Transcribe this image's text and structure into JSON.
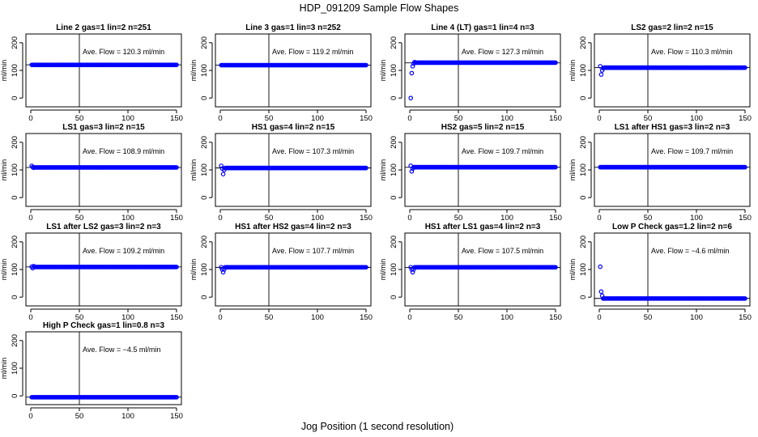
{
  "figure": {
    "title": "HDP_091209  Sample Flow Shapes",
    "xlabel": "Jog Position (1 second resolution)",
    "ylabel": "ml/min",
    "ave_prefix": "Ave. Flow = ",
    "ave_unit": " ml/min"
  },
  "chart_data": [
    {
      "type": "scatter",
      "title": "Line 2 gas=1 lin=2 n=251",
      "ave_flow": "120.3",
      "steady": 120,
      "start": [
        120,
        120,
        120
      ],
      "n": 150,
      "xlim": [
        0,
        150
      ],
      "ylim": [
        -20,
        220
      ],
      "xticks": [
        0,
        50,
        100,
        150
      ],
      "yticks": [
        0,
        100,
        200
      ],
      "vline": 50,
      "color": "#0000ff"
    },
    {
      "type": "scatter",
      "title": "Line 3 gas=1 lin=3 n=252",
      "ave_flow": "119.2",
      "steady": 119,
      "start": [
        119,
        119,
        119
      ],
      "n": 150,
      "xlim": [
        0,
        150
      ],
      "ylim": [
        -20,
        220
      ],
      "xticks": [
        0,
        50,
        100,
        150
      ],
      "yticks": [
        0,
        100,
        200
      ],
      "vline": 50,
      "color": "#0000ff"
    },
    {
      "type": "scatter",
      "title": "Line 4 (LT) gas=1 lin=4 n=3",
      "ave_flow": "127.3",
      "steady": 128,
      "start": [
        0,
        90,
        115,
        125,
        130
      ],
      "n": 150,
      "xlim": [
        0,
        150
      ],
      "ylim": [
        -20,
        220
      ],
      "xticks": [
        0,
        50,
        100,
        150
      ],
      "yticks": [
        0,
        100,
        200
      ],
      "vline": 50,
      "color": "#0000ff"
    },
    {
      "type": "scatter",
      "title": "LS2 gas=2 lin=2 n=15",
      "ave_flow": "110.3",
      "steady": 110,
      "start": [
        115,
        85,
        100,
        108
      ],
      "n": 150,
      "xlim": [
        0,
        150
      ],
      "ylim": [
        -20,
        220
      ],
      "xticks": [
        0,
        50,
        100,
        150
      ],
      "yticks": [
        0,
        100,
        200
      ],
      "vline": 50,
      "color": "#0000ff"
    },
    {
      "type": "scatter",
      "title": "LS1 gas=3 lin=2 n=15",
      "ave_flow": "108.9",
      "steady": 109,
      "start": [
        115,
        110,
        108
      ],
      "n": 150,
      "xlim": [
        0,
        150
      ],
      "ylim": [
        -20,
        220
      ],
      "xticks": [
        0,
        50,
        100,
        150
      ],
      "yticks": [
        0,
        100,
        200
      ],
      "vline": 50,
      "color": "#0000ff"
    },
    {
      "type": "scatter",
      "title": "HS1 gas=4 lin=2 n=15",
      "ave_flow": "107.3",
      "steady": 107,
      "start": [
        115,
        105,
        85,
        100
      ],
      "n": 150,
      "xlim": [
        0,
        150
      ],
      "ylim": [
        -20,
        220
      ],
      "xticks": [
        0,
        50,
        100,
        150
      ],
      "yticks": [
        0,
        100,
        200
      ],
      "vline": 50,
      "color": "#0000ff"
    },
    {
      "type": "scatter",
      "title": "HS2 gas=5 lin=2 n=15",
      "ave_flow": "109.7",
      "steady": 110,
      "start": [
        115,
        95,
        105
      ],
      "n": 150,
      "xlim": [
        0,
        150
      ],
      "ylim": [
        -20,
        220
      ],
      "xticks": [
        0,
        50,
        100,
        150
      ],
      "yticks": [
        0,
        100,
        200
      ],
      "vline": 50,
      "color": "#0000ff"
    },
    {
      "type": "scatter",
      "title": "LS1 after HS1 gas=3 lin=2 n=3",
      "ave_flow": "109.7",
      "steady": 110,
      "start": [
        110,
        110,
        110
      ],
      "n": 150,
      "xlim": [
        0,
        150
      ],
      "ylim": [
        -20,
        220
      ],
      "xticks": [
        0,
        50,
        100,
        150
      ],
      "yticks": [
        0,
        100,
        200
      ],
      "vline": 50,
      "color": "#0000ff"
    },
    {
      "type": "scatter",
      "title": "LS1 after LS2 gas=3 lin=2 n=3",
      "ave_flow": "109.2",
      "steady": 109,
      "start": [
        110,
        105,
        112
      ],
      "n": 150,
      "xlim": [
        0,
        150
      ],
      "ylim": [
        -20,
        220
      ],
      "xticks": [
        0,
        50,
        100,
        150
      ],
      "yticks": [
        0,
        100,
        200
      ],
      "vline": 50,
      "color": "#0000ff"
    },
    {
      "type": "scatter",
      "title": "HS1 after HS2 gas=4 lin=2 n=3",
      "ave_flow": "107.7",
      "steady": 108,
      "start": [
        108,
        100,
        90,
        100
      ],
      "n": 150,
      "xlim": [
        0,
        150
      ],
      "ylim": [
        -20,
        220
      ],
      "xticks": [
        0,
        50,
        100,
        150
      ],
      "yticks": [
        0,
        100,
        200
      ],
      "vline": 50,
      "color": "#0000ff"
    },
    {
      "type": "scatter",
      "title": "HS1 after LS1 gas=4 lin=2 n=3",
      "ave_flow": "107.5",
      "steady": 108,
      "start": [
        108,
        100,
        90,
        100
      ],
      "n": 150,
      "xlim": [
        0,
        150
      ],
      "ylim": [
        -20,
        220
      ],
      "xticks": [
        0,
        50,
        100,
        150
      ],
      "yticks": [
        0,
        100,
        200
      ],
      "vline": 50,
      "color": "#0000ff"
    },
    {
      "type": "scatter",
      "title": "Low P Check gas=1.2 lin=2 n=6",
      "ave_flow": "−4.6",
      "steady": -5,
      "start": [
        110,
        20,
        5
      ],
      "n": 150,
      "xlim": [
        0,
        150
      ],
      "ylim": [
        -20,
        220
      ],
      "xticks": [
        0,
        50,
        100,
        150
      ],
      "yticks": [
        0,
        100,
        200
      ],
      "vline": 50,
      "color": "#0000ff"
    },
    {
      "type": "scatter",
      "title": "High P Check gas=1 lin=0.8 n=3",
      "ave_flow": "−4.5",
      "steady": -5,
      "start": [
        -5,
        -5,
        -5
      ],
      "n": 150,
      "xlim": [
        0,
        150
      ],
      "ylim": [
        -20,
        220
      ],
      "xticks": [
        0,
        50,
        100,
        150
      ],
      "yticks": [
        0,
        100,
        200
      ],
      "vline": 50,
      "color": "#0000ff"
    }
  ]
}
